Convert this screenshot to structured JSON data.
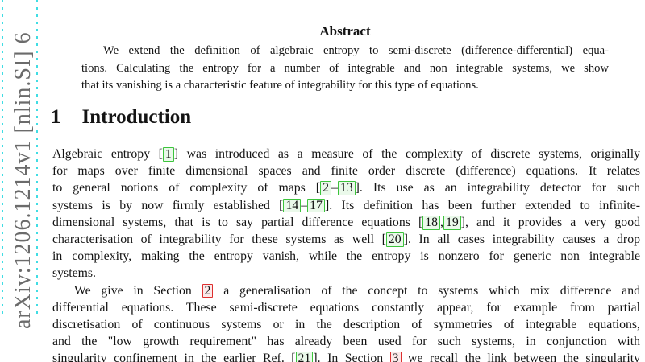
{
  "watermark": {
    "text": "arXiv:1206.1214v1 [nlin.SI] 6"
  },
  "colors": {
    "watermark_gray": "#6b6b6b",
    "crop_dash_cyan": "#40dde4",
    "cite_border_green": "#3cc43c",
    "cite_bg_green": "#eaf9ea",
    "ref_border_red": "#dd2f2f",
    "ref_bg_red": "#fbe9e9"
  },
  "abstract": {
    "title": "Abstract",
    "lines": [
      {
        "indent": true,
        "tokens": [
          "We extend the definition of algebraic entropy to semi-discrete (difference-differential) equa-"
        ]
      },
      {
        "tokens": [
          "tions. Calculating the entropy for a number of integrable and non integrable systems, we show"
        ]
      },
      {
        "last": true,
        "tokens": [
          "that its vanishing is a characteristic feature of integrability for this type of equations."
        ]
      }
    ]
  },
  "section": {
    "number": "1",
    "title": "Introduction"
  },
  "intro": {
    "lines": [
      {
        "tokens": [
          "Algebraic entropy [",
          {
            "c": "1"
          },
          "] was introduced as a measure of the complexity of discrete systems, originally"
        ]
      },
      {
        "tokens": [
          "for maps over finite dimensional spaces and finite order discrete (difference) equations. It relates"
        ]
      },
      {
        "tokens": [
          "to general notions of complexity of maps [",
          {
            "c": "2"
          },
          "–",
          {
            "c": "13"
          },
          "]. Its use as an integrability detector for such"
        ]
      },
      {
        "tokens": [
          "systems is by now firmly established [",
          {
            "c": "14"
          },
          "–",
          {
            "c": "17"
          },
          "]. Its definition has been further extended to infinite-"
        ]
      },
      {
        "tokens": [
          "dimensional systems, that is to say partial difference equations [",
          {
            "c": "18"
          },
          ",",
          {
            "c": "19"
          },
          "], and it provides a very good"
        ]
      },
      {
        "tokens": [
          "characterisation of integrability for these systems as well [",
          {
            "c": "20"
          },
          "]. In all cases integrability causes a drop"
        ]
      },
      {
        "tokens": [
          "in complexity, making the entropy vanish, while the entropy is nonzero for generic non integrable"
        ]
      },
      {
        "last": true,
        "tokens": [
          "systems."
        ]
      },
      {
        "indent": true,
        "tokens": [
          "We give in Section ",
          {
            "r": "2"
          },
          " a generalisation of the concept to systems which mix difference and"
        ]
      },
      {
        "tokens": [
          "differential equations. These semi-discrete equations constantly appear, for example from partial"
        ]
      },
      {
        "tokens": [
          "discretisation of continuous systems or in the description of symmetries of integrable equations,"
        ]
      },
      {
        "tokens": [
          "and the \"low growth requirement\" has already been used for such systems, in conjunction with"
        ]
      },
      {
        "tokens": [
          "singularity confinement in the earlier Ref. [",
          {
            "c": "21"
          },
          "]. In Section ",
          {
            "r": "3"
          },
          " we recall the link between the singularity"
        ]
      }
    ]
  }
}
